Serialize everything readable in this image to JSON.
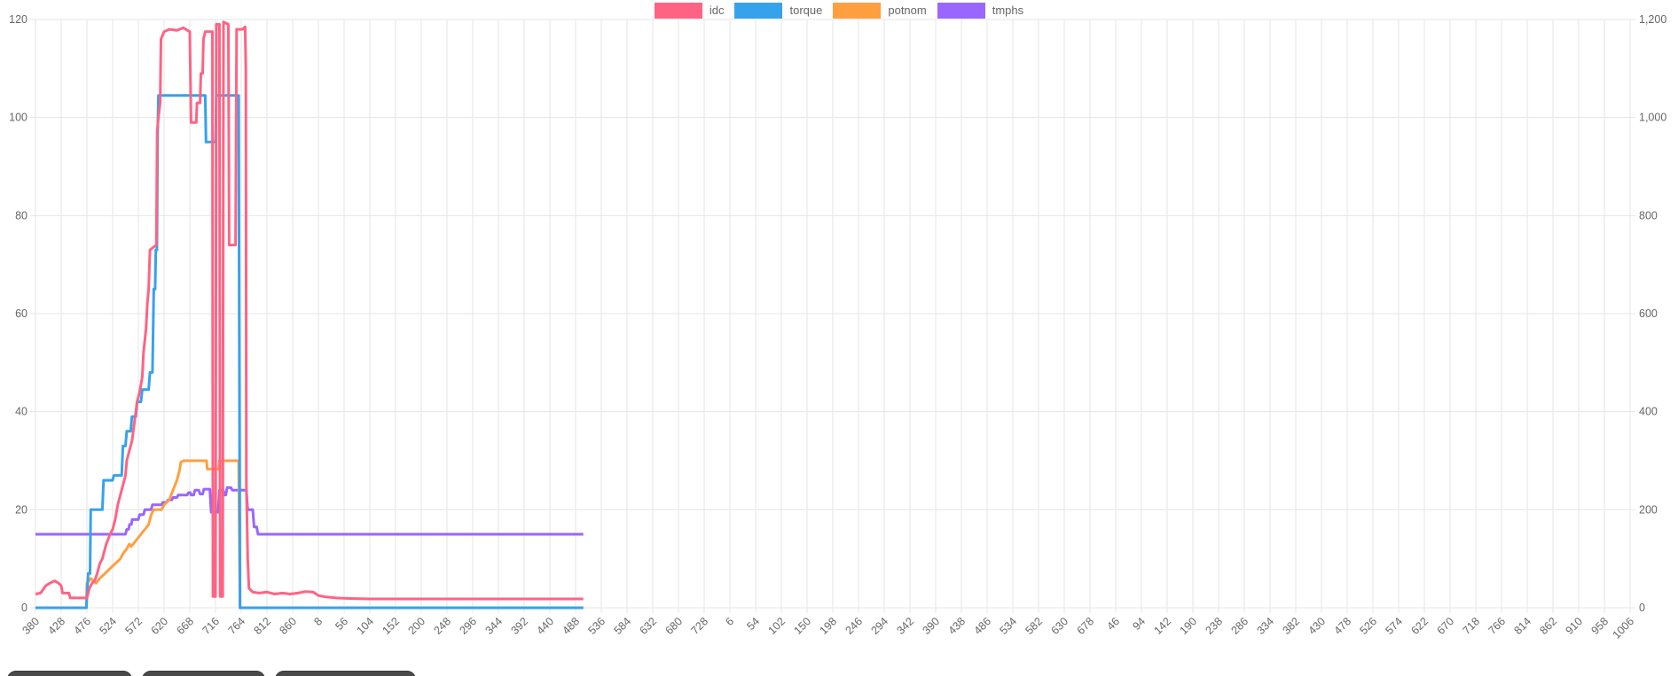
{
  "legend": {
    "items": [
      {
        "label": "idc",
        "color": "#FF6384"
      },
      {
        "label": "torque",
        "color": "#36A2EB"
      },
      {
        "label": "potnom",
        "color": "#FF9F40"
      },
      {
        "label": "tmphs",
        "color": "#9966FF"
      }
    ]
  },
  "colors": {
    "background": "#ffffff",
    "gridline": "#e6e6e6",
    "axis_text": "#666666",
    "button_bg": "#4a4a4a"
  },
  "buttons": [
    {
      "label": ""
    },
    {
      "label": ""
    },
    {
      "label": ""
    }
  ],
  "chart_data": {
    "type": "line",
    "title": "",
    "xlabel": "",
    "ylabel": "",
    "grid": true,
    "legend_position": "top",
    "left_axis": {
      "min": 0,
      "max": 120,
      "step": 20,
      "tick_labels_top_to_bottom": [
        "120",
        "100",
        "80",
        "60",
        "40",
        "20",
        "0"
      ]
    },
    "right_axis": {
      "min": 0,
      "max": 1200,
      "step": 200,
      "tick_labels_top_to_bottom": [
        "1,200",
        "1,000",
        "800",
        "600",
        "400",
        "200",
        "0"
      ]
    },
    "x_tick_labels": [
      "380",
      "428",
      "476",
      "524",
      "572",
      "620",
      "668",
      "716",
      "764",
      "812",
      "860",
      "8",
      "56",
      "104",
      "152",
      "200",
      "248",
      "296",
      "344",
      "392",
      "440",
      "488",
      "536",
      "584",
      "632",
      "680",
      "728",
      "6",
      "54",
      "102",
      "150",
      "198",
      "246",
      "294",
      "342",
      "390",
      "438",
      "486",
      "534",
      "582",
      "630",
      "678",
      "46",
      "94",
      "142",
      "190",
      "238",
      "286",
      "334",
      "382",
      "430",
      "478",
      "526",
      "574",
      "622",
      "670",
      "718",
      "766",
      "814",
      "862",
      "910",
      "958",
      "1006"
    ],
    "x_unit": "tick-index (0 = label 380, 62 = label 1006)",
    "draw_order": [
      "tmphs",
      "potnom",
      "torque",
      "idc"
    ],
    "series": [
      {
        "name": "idc",
        "color": "#FF6384",
        "axis": "left",
        "points": [
          [
            0,
            2.8
          ],
          [
            0.2,
            3
          ],
          [
            0.4,
            4.5
          ],
          [
            0.55,
            5
          ],
          [
            0.75,
            5.5
          ],
          [
            0.9,
            5
          ],
          [
            1.0,
            4.5
          ],
          [
            1.05,
            3
          ],
          [
            1.3,
            3
          ],
          [
            1.35,
            2
          ],
          [
            2.0,
            2
          ],
          [
            2.1,
            4
          ],
          [
            2.2,
            5
          ],
          [
            2.3,
            5.5
          ],
          [
            2.4,
            7
          ],
          [
            2.5,
            9
          ],
          [
            2.6,
            10
          ],
          [
            2.75,
            13
          ],
          [
            2.9,
            15
          ],
          [
            3.0,
            16
          ],
          [
            3.1,
            18
          ],
          [
            3.2,
            21
          ],
          [
            3.3,
            23
          ],
          [
            3.4,
            25
          ],
          [
            3.5,
            27
          ],
          [
            3.55,
            30
          ],
          [
            3.65,
            32
          ],
          [
            3.75,
            34
          ],
          [
            3.85,
            38
          ],
          [
            3.95,
            42
          ],
          [
            4.05,
            44
          ],
          [
            4.15,
            47
          ],
          [
            4.2,
            52
          ],
          [
            4.3,
            57
          ],
          [
            4.35,
            62
          ],
          [
            4.4,
            65
          ],
          [
            4.45,
            73
          ],
          [
            4.7,
            74
          ],
          [
            4.73,
            97
          ],
          [
            4.78,
            100
          ],
          [
            4.85,
            103
          ],
          [
            4.88,
            116
          ],
          [
            5.0,
            117.5
          ],
          [
            5.2,
            118
          ],
          [
            5.5,
            117.8
          ],
          [
            5.75,
            118.3
          ],
          [
            6.0,
            117.5
          ],
          [
            6.05,
            99
          ],
          [
            6.25,
            99
          ],
          [
            6.28,
            103
          ],
          [
            6.4,
            103
          ],
          [
            6.43,
            109
          ],
          [
            6.5,
            109
          ],
          [
            6.53,
            116
          ],
          [
            6.6,
            117.5
          ],
          [
            6.88,
            117.5
          ],
          [
            6.9,
            2.3
          ],
          [
            7.0,
            2.3
          ],
          [
            7.03,
            119
          ],
          [
            7.15,
            119
          ],
          [
            7.18,
            2.3
          ],
          [
            7.28,
            2.3
          ],
          [
            7.31,
            119.5
          ],
          [
            7.5,
            119
          ],
          [
            7.53,
            74
          ],
          [
            7.78,
            74
          ],
          [
            7.82,
            118
          ],
          [
            8.05,
            118
          ],
          [
            8.15,
            118.5
          ],
          [
            8.18,
            110
          ],
          [
            8.2,
            25
          ],
          [
            8.25,
            10
          ],
          [
            8.3,
            4
          ],
          [
            8.45,
            3.2
          ],
          [
            8.7,
            3
          ],
          [
            9.0,
            3.2
          ],
          [
            9.3,
            2.8
          ],
          [
            9.6,
            3
          ],
          [
            9.9,
            2.8
          ],
          [
            10.2,
            3
          ],
          [
            10.5,
            3.3
          ],
          [
            10.8,
            3.2
          ],
          [
            11.0,
            2.5
          ],
          [
            11.3,
            2.2
          ],
          [
            11.7,
            2
          ],
          [
            12.2,
            1.9
          ],
          [
            13,
            1.8
          ],
          [
            16,
            1.8
          ],
          [
            19,
            1.8
          ],
          [
            21.3,
            1.8
          ]
        ]
      },
      {
        "name": "torque",
        "color": "#36A2EB",
        "axis": "left",
        "points": [
          [
            0,
            0
          ],
          [
            1.98,
            0
          ],
          [
            2.0,
            2
          ],
          [
            2.05,
            7
          ],
          [
            2.12,
            7
          ],
          [
            2.15,
            20
          ],
          [
            2.6,
            20
          ],
          [
            2.65,
            26
          ],
          [
            3.0,
            26
          ],
          [
            3.05,
            27
          ],
          [
            3.35,
            27
          ],
          [
            3.4,
            33
          ],
          [
            3.5,
            33
          ],
          [
            3.55,
            36
          ],
          [
            3.7,
            36
          ],
          [
            3.75,
            39
          ],
          [
            3.9,
            39
          ],
          [
            3.95,
            42
          ],
          [
            4.1,
            42
          ],
          [
            4.15,
            44.5
          ],
          [
            4.4,
            44.5
          ],
          [
            4.45,
            48
          ],
          [
            4.55,
            48
          ],
          [
            4.6,
            65
          ],
          [
            4.65,
            65
          ],
          [
            4.68,
            73
          ],
          [
            4.72,
            73
          ],
          [
            4.75,
            97
          ],
          [
            4.78,
            104.5
          ],
          [
            6.6,
            104.5
          ],
          [
            6.63,
            95
          ],
          [
            7.0,
            95
          ],
          [
            7.03,
            104.5
          ],
          [
            7.9,
            104.5
          ],
          [
            7.95,
            0
          ],
          [
            21.3,
            0
          ]
        ]
      },
      {
        "name": "potnom",
        "color": "#FF9F40",
        "axis": "left",
        "points": [
          [
            0,
            0
          ],
          [
            1.98,
            0
          ],
          [
            2.0,
            5
          ],
          [
            2.15,
            6
          ],
          [
            2.25,
            5.5
          ],
          [
            2.35,
            5
          ],
          [
            2.5,
            6
          ],
          [
            2.7,
            7
          ],
          [
            2.9,
            8
          ],
          [
            3.1,
            9
          ],
          [
            3.3,
            10
          ],
          [
            3.4,
            11
          ],
          [
            3.55,
            12
          ],
          [
            3.65,
            13
          ],
          [
            3.72,
            12.5
          ],
          [
            3.8,
            13
          ],
          [
            3.95,
            14
          ],
          [
            4.1,
            15
          ],
          [
            4.25,
            16
          ],
          [
            4.4,
            17
          ],
          [
            4.5,
            19
          ],
          [
            4.6,
            20
          ],
          [
            4.9,
            20
          ],
          [
            5.0,
            21
          ],
          [
            5.2,
            22
          ],
          [
            5.35,
            24
          ],
          [
            5.5,
            26
          ],
          [
            5.6,
            28
          ],
          [
            5.65,
            29.7
          ],
          [
            5.75,
            30
          ],
          [
            6.65,
            30
          ],
          [
            6.68,
            28.3
          ],
          [
            7.12,
            28.3
          ],
          [
            7.15,
            30
          ],
          [
            7.9,
            30
          ],
          [
            7.95,
            0
          ],
          [
            21.3,
            0
          ]
        ]
      },
      {
        "name": "tmphs",
        "color": "#9966FF",
        "axis": "left",
        "points": [
          [
            0,
            15
          ],
          [
            3.5,
            15
          ],
          [
            3.55,
            16
          ],
          [
            3.62,
            16
          ],
          [
            3.66,
            17
          ],
          [
            3.73,
            17
          ],
          [
            3.76,
            18
          ],
          [
            4.0,
            18
          ],
          [
            4.05,
            19
          ],
          [
            4.2,
            19
          ],
          [
            4.25,
            20
          ],
          [
            4.5,
            20
          ],
          [
            4.55,
            21
          ],
          [
            4.9,
            21
          ],
          [
            4.95,
            21.5
          ],
          [
            5.1,
            21.5
          ],
          [
            5.15,
            22
          ],
          [
            5.3,
            22
          ],
          [
            5.35,
            22.5
          ],
          [
            5.5,
            22.5
          ],
          [
            5.55,
            23
          ],
          [
            5.9,
            23
          ],
          [
            5.95,
            23.5
          ],
          [
            6.02,
            23.5
          ],
          [
            6.05,
            23
          ],
          [
            6.15,
            23
          ],
          [
            6.2,
            24
          ],
          [
            6.35,
            24
          ],
          [
            6.4,
            23.2
          ],
          [
            6.5,
            23.2
          ],
          [
            6.55,
            24.2
          ],
          [
            6.78,
            24.2
          ],
          [
            6.83,
            19.5
          ],
          [
            7.1,
            19.5
          ],
          [
            7.15,
            24
          ],
          [
            7.3,
            24
          ],
          [
            7.35,
            23
          ],
          [
            7.4,
            23
          ],
          [
            7.45,
            24.5
          ],
          [
            7.6,
            24.5
          ],
          [
            7.65,
            24
          ],
          [
            8.2,
            24
          ],
          [
            8.25,
            20
          ],
          [
            8.45,
            20
          ],
          [
            8.5,
            16.5
          ],
          [
            8.6,
            16.5
          ],
          [
            8.65,
            15
          ],
          [
            21.3,
            15
          ]
        ]
      }
    ]
  }
}
